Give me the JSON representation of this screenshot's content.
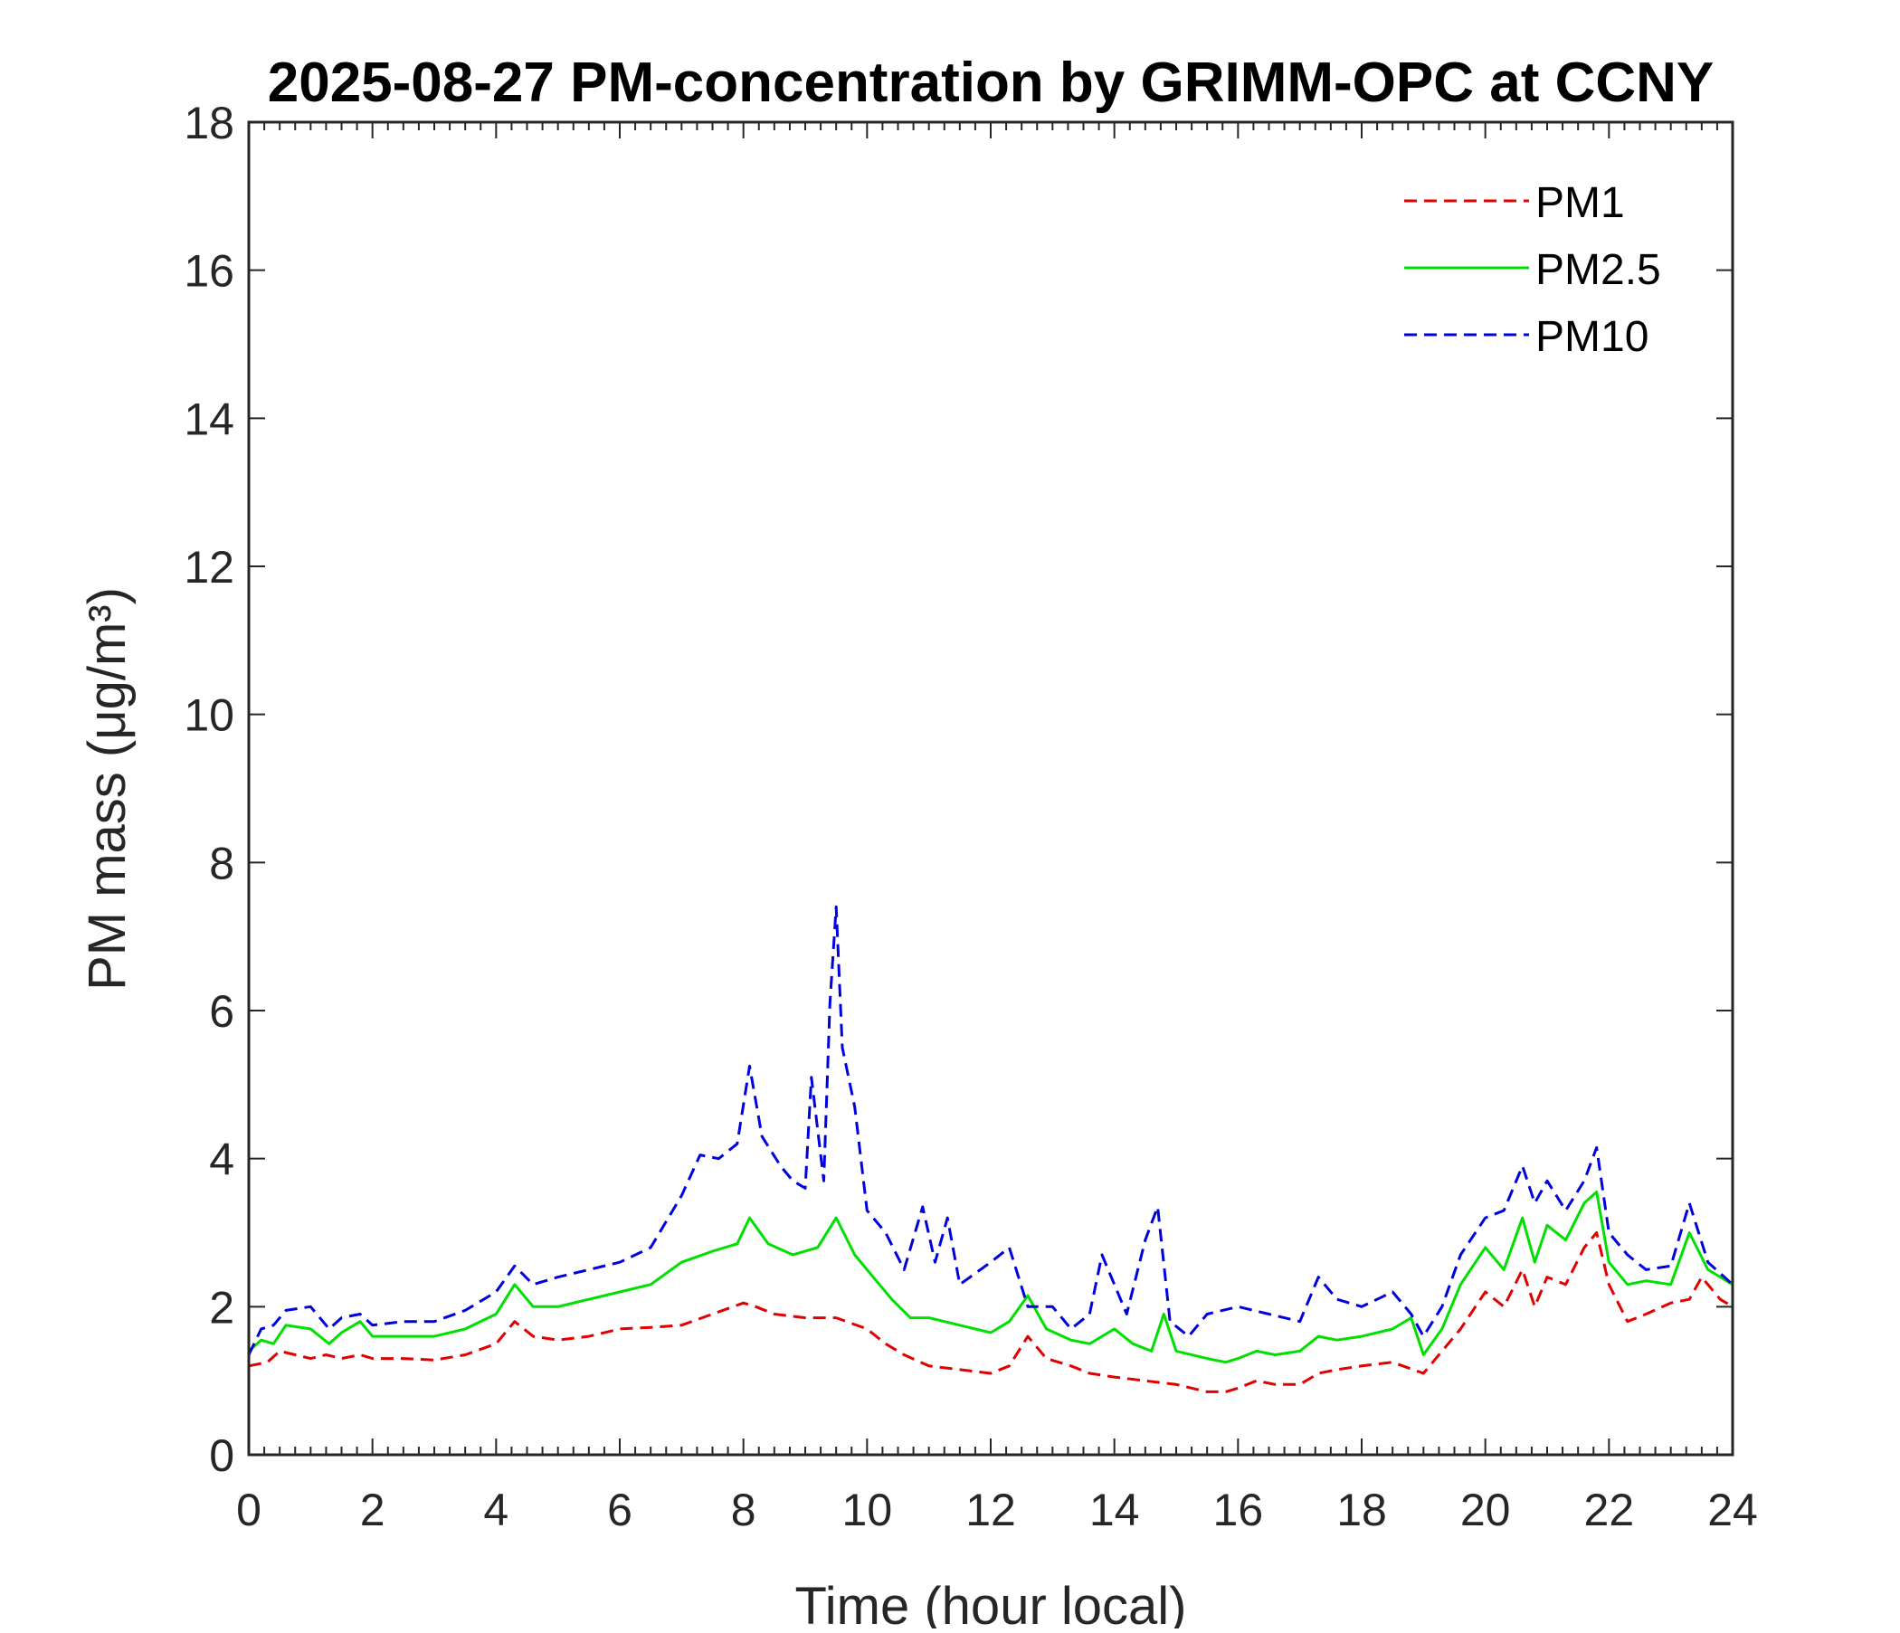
{
  "chart_data": {
    "type": "line",
    "title": "2025-08-27 PM-concentration by GRIMM-OPC at CCNY",
    "xlabel": "Time (hour local)",
    "ylabel": "PM mass (μg/m³)",
    "xlim": [
      0,
      24
    ],
    "ylim": [
      0,
      18
    ],
    "xticks": [
      0,
      2,
      4,
      6,
      8,
      10,
      12,
      14,
      16,
      18,
      20,
      22,
      24
    ],
    "yticks": [
      0,
      2,
      4,
      6,
      8,
      10,
      12,
      14,
      16,
      18
    ],
    "grid": false,
    "legend_position": "top-right",
    "series": [
      {
        "name": "PM1",
        "color": "#e00000",
        "dash": "dashed",
        "points": [
          [
            0,
            1.2
          ],
          [
            0.3,
            1.25
          ],
          [
            0.5,
            1.4
          ],
          [
            0.75,
            1.35
          ],
          [
            1,
            1.3
          ],
          [
            1.25,
            1.35
          ],
          [
            1.5,
            1.3
          ],
          [
            1.8,
            1.35
          ],
          [
            2,
            1.3
          ],
          [
            2.5,
            1.3
          ],
          [
            3,
            1.28
          ],
          [
            3.5,
            1.35
          ],
          [
            4,
            1.5
          ],
          [
            4.3,
            1.8
          ],
          [
            4.6,
            1.6
          ],
          [
            5,
            1.55
          ],
          [
            5.5,
            1.6
          ],
          [
            6,
            1.7
          ],
          [
            6.5,
            1.72
          ],
          [
            7,
            1.75
          ],
          [
            7.5,
            1.9
          ],
          [
            8,
            2.05
          ],
          [
            8.2,
            2.0
          ],
          [
            8.5,
            1.9
          ],
          [
            9,
            1.85
          ],
          [
            9.5,
            1.85
          ],
          [
            10,
            1.7
          ],
          [
            10.3,
            1.5
          ],
          [
            10.6,
            1.35
          ],
          [
            11,
            1.2
          ],
          [
            11.5,
            1.15
          ],
          [
            12,
            1.1
          ],
          [
            12.3,
            1.2
          ],
          [
            12.6,
            1.6
          ],
          [
            12.9,
            1.3
          ],
          [
            13.3,
            1.2
          ],
          [
            13.6,
            1.1
          ],
          [
            14,
            1.05
          ],
          [
            14.5,
            1.0
          ],
          [
            15,
            0.95
          ],
          [
            15.5,
            0.85
          ],
          [
            15.8,
            0.85
          ],
          [
            16,
            0.9
          ],
          [
            16.3,
            1.0
          ],
          [
            16.6,
            0.95
          ],
          [
            17,
            0.95
          ],
          [
            17.3,
            1.1
          ],
          [
            17.6,
            1.15
          ],
          [
            18,
            1.2
          ],
          [
            18.5,
            1.25
          ],
          [
            19,
            1.1
          ],
          [
            19.3,
            1.4
          ],
          [
            19.6,
            1.7
          ],
          [
            20,
            2.2
          ],
          [
            20.3,
            2.0
          ],
          [
            20.6,
            2.5
          ],
          [
            20.8,
            2.0
          ],
          [
            21,
            2.4
          ],
          [
            21.3,
            2.3
          ],
          [
            21.6,
            2.8
          ],
          [
            21.8,
            3.0
          ],
          [
            22,
            2.3
          ],
          [
            22.3,
            1.8
          ],
          [
            22.6,
            1.9
          ],
          [
            23,
            2.05
          ],
          [
            23.3,
            2.1
          ],
          [
            23.5,
            2.4
          ],
          [
            23.8,
            2.1
          ],
          [
            24,
            2.0
          ]
        ]
      },
      {
        "name": "PM2.5",
        "color": "#00e000",
        "dash": "solid",
        "points": [
          [
            0,
            1.4
          ],
          [
            0.2,
            1.55
          ],
          [
            0.4,
            1.5
          ],
          [
            0.6,
            1.75
          ],
          [
            1,
            1.7
          ],
          [
            1.3,
            1.5
          ],
          [
            1.5,
            1.65
          ],
          [
            1.8,
            1.8
          ],
          [
            2,
            1.6
          ],
          [
            2.5,
            1.6
          ],
          [
            3,
            1.6
          ],
          [
            3.5,
            1.7
          ],
          [
            4,
            1.9
          ],
          [
            4.3,
            2.3
          ],
          [
            4.6,
            2.0
          ],
          [
            5,
            2.0
          ],
          [
            5.5,
            2.1
          ],
          [
            6,
            2.2
          ],
          [
            6.5,
            2.3
          ],
          [
            7,
            2.6
          ],
          [
            7.5,
            2.75
          ],
          [
            7.9,
            2.85
          ],
          [
            8.1,
            3.2
          ],
          [
            8.4,
            2.85
          ],
          [
            8.8,
            2.7
          ],
          [
            9.2,
            2.8
          ],
          [
            9.5,
            3.2
          ],
          [
            9.8,
            2.7
          ],
          [
            10,
            2.5
          ],
          [
            10.4,
            2.1
          ],
          [
            10.7,
            1.85
          ],
          [
            11,
            1.85
          ],
          [
            11.5,
            1.75
          ],
          [
            12,
            1.65
          ],
          [
            12.3,
            1.8
          ],
          [
            12.6,
            2.15
          ],
          [
            12.9,
            1.7
          ],
          [
            13.3,
            1.55
          ],
          [
            13.6,
            1.5
          ],
          [
            14,
            1.7
          ],
          [
            14.3,
            1.5
          ],
          [
            14.6,
            1.4
          ],
          [
            14.8,
            1.9
          ],
          [
            15,
            1.4
          ],
          [
            15.5,
            1.3
          ],
          [
            15.8,
            1.25
          ],
          [
            16,
            1.3
          ],
          [
            16.3,
            1.4
          ],
          [
            16.6,
            1.35
          ],
          [
            17,
            1.4
          ],
          [
            17.3,
            1.6
          ],
          [
            17.6,
            1.55
          ],
          [
            18,
            1.6
          ],
          [
            18.5,
            1.7
          ],
          [
            18.8,
            1.85
          ],
          [
            19,
            1.35
          ],
          [
            19.3,
            1.7
          ],
          [
            19.6,
            2.3
          ],
          [
            20,
            2.8
          ],
          [
            20.3,
            2.5
          ],
          [
            20.6,
            3.2
          ],
          [
            20.8,
            2.6
          ],
          [
            21,
            3.1
          ],
          [
            21.3,
            2.9
          ],
          [
            21.6,
            3.4
          ],
          [
            21.8,
            3.55
          ],
          [
            22,
            2.6
          ],
          [
            22.3,
            2.3
          ],
          [
            22.6,
            2.35
          ],
          [
            23,
            2.3
          ],
          [
            23.3,
            3.0
          ],
          [
            23.6,
            2.5
          ],
          [
            24,
            2.3
          ]
        ]
      },
      {
        "name": "PM10",
        "color": "#0000dd",
        "dash": "dashed",
        "points": [
          [
            0,
            1.35
          ],
          [
            0.2,
            1.7
          ],
          [
            0.4,
            1.75
          ],
          [
            0.6,
            1.95
          ],
          [
            1,
            2.0
          ],
          [
            1.3,
            1.7
          ],
          [
            1.5,
            1.85
          ],
          [
            1.8,
            1.9
          ],
          [
            2,
            1.75
          ],
          [
            2.5,
            1.8
          ],
          [
            3,
            1.8
          ],
          [
            3.5,
            1.95
          ],
          [
            4,
            2.2
          ],
          [
            4.3,
            2.55
          ],
          [
            4.6,
            2.3
          ],
          [
            5,
            2.4
          ],
          [
            5.5,
            2.5
          ],
          [
            6,
            2.6
          ],
          [
            6.5,
            2.8
          ],
          [
            7,
            3.5
          ],
          [
            7.3,
            4.05
          ],
          [
            7.6,
            4.0
          ],
          [
            7.9,
            4.2
          ],
          [
            8.1,
            5.25
          ],
          [
            8.3,
            4.3
          ],
          [
            8.6,
            3.9
          ],
          [
            8.8,
            3.7
          ],
          [
            9.0,
            3.6
          ],
          [
            9.1,
            5.1
          ],
          [
            9.3,
            3.7
          ],
          [
            9.4,
            6.1
          ],
          [
            9.5,
            7.4
          ],
          [
            9.6,
            5.5
          ],
          [
            9.8,
            4.7
          ],
          [
            10,
            3.3
          ],
          [
            10.3,
            3.0
          ],
          [
            10.6,
            2.5
          ],
          [
            10.9,
            3.35
          ],
          [
            11.1,
            2.6
          ],
          [
            11.3,
            3.2
          ],
          [
            11.5,
            2.3
          ],
          [
            12,
            2.6
          ],
          [
            12.3,
            2.8
          ],
          [
            12.6,
            2.0
          ],
          [
            13,
            2.0
          ],
          [
            13.3,
            1.7
          ],
          [
            13.6,
            1.9
          ],
          [
            13.8,
            2.7
          ],
          [
            14,
            2.3
          ],
          [
            14.2,
            1.9
          ],
          [
            14.5,
            2.9
          ],
          [
            14.7,
            3.35
          ],
          [
            14.9,
            1.8
          ],
          [
            15.2,
            1.6
          ],
          [
            15.5,
            1.9
          ],
          [
            16,
            2.0
          ],
          [
            16.5,
            1.9
          ],
          [
            17,
            1.8
          ],
          [
            17.3,
            2.4
          ],
          [
            17.6,
            2.1
          ],
          [
            18,
            2.0
          ],
          [
            18.5,
            2.2
          ],
          [
            18.8,
            1.9
          ],
          [
            19,
            1.6
          ],
          [
            19.3,
            2.0
          ],
          [
            19.6,
            2.7
          ],
          [
            20,
            3.2
          ],
          [
            20.3,
            3.3
          ],
          [
            20.6,
            3.9
          ],
          [
            20.8,
            3.4
          ],
          [
            21,
            3.7
          ],
          [
            21.3,
            3.3
          ],
          [
            21.6,
            3.7
          ],
          [
            21.8,
            4.15
          ],
          [
            22,
            3.0
          ],
          [
            22.3,
            2.7
          ],
          [
            22.6,
            2.5
          ],
          [
            23,
            2.55
          ],
          [
            23.3,
            3.4
          ],
          [
            23.6,
            2.6
          ],
          [
            24,
            2.3
          ]
        ]
      }
    ]
  }
}
